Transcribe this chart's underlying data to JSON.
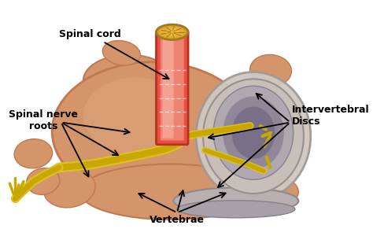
{
  "background_color": "#ffffff",
  "figsize": [
    4.74,
    3.19
  ],
  "dpi": 100,
  "labels": {
    "spinal_cord": "Spinal cord",
    "spinal_nerve_roots": "Spinal nerve\nroots",
    "intervertebral_discs": "Intervertebral\nDiscs",
    "vertebrae": "Vertebrae"
  },
  "colors": {
    "vertebra_body": "#D4956A",
    "vertebra_body_dark": "#C07850",
    "vertebra_light": "#E0AA80",
    "disc_outer_ring": "#C8C0B8",
    "disc_mid": "#B0A8B0",
    "disc_inner": "#908898",
    "disc_center": "#787088",
    "spinal_cord_outer": "#E85040",
    "spinal_cord_mid": "#F09080",
    "spinal_cord_light": "#F8C0B0",
    "spinal_cord_top_outer": "#D4A030",
    "spinal_cord_top_inner": "#F0C040",
    "nerve_yellow": "#C8A800",
    "nerve_bright": "#E0C020",
    "label_color": "#000000",
    "arrow_color": "#000000"
  }
}
